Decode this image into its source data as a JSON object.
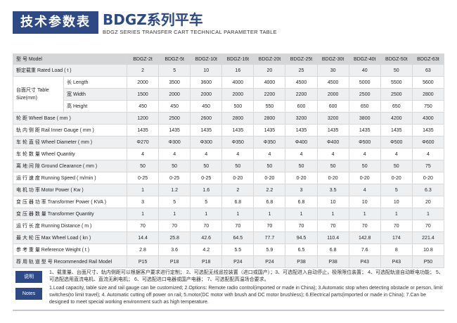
{
  "header": {
    "cn_title": "技术参数表",
    "sys_title": "BDGZ系列平车",
    "en_title": "BDGZ SERIES TRANSFER CART TECHNICAL PARAMETER TABLE"
  },
  "table": {
    "model_label": "型 号 Model",
    "models": [
      "BDGZ-2t",
      "BDGZ-5t",
      "BDGZ-10t",
      "BDGZ-16t",
      "BDGZ-20t",
      "BDGZ-25t",
      "BDGZ-30t",
      "BDGZ-40t",
      "BDGZ-50t",
      "BDGZ-63t"
    ],
    "rated_load": {
      "label": "额定载重 Rated Load ( t )",
      "values": [
        "2",
        "5",
        "10",
        "16",
        "20",
        "25",
        "30",
        "40",
        "50",
        "63"
      ]
    },
    "table_size": {
      "label": "台面尺寸 Table Size(mm)",
      "rows": [
        {
          "label": "长 Length",
          "values": [
            "2000",
            "3500",
            "3600",
            "4000",
            "4000",
            "4500",
            "4500",
            "5000",
            "5500",
            "5600"
          ]
        },
        {
          "label": "宽 Width",
          "values": [
            "1500",
            "2000",
            "2000",
            "2000",
            "2200",
            "2200",
            "2000",
            "2500",
            "2500",
            "2800"
          ]
        },
        {
          "label": "高 Height",
          "values": [
            "450",
            "450",
            "450",
            "500",
            "550",
            "600",
            "600",
            "650",
            "650",
            "750"
          ]
        }
      ]
    },
    "rows": [
      {
        "label": "轮 距 Wheel Base ( mm )",
        "values": [
          "1200",
          "2500",
          "2600",
          "2800",
          "2800",
          "3200",
          "3200",
          "3800",
          "4200",
          "4300"
        ]
      },
      {
        "label": "轨 内 侧 距 Rail Inner Gauge ( mm )",
        "values": [
          "1435",
          "1435",
          "1435",
          "1435",
          "1435",
          "1435",
          "1435",
          "1435",
          "1435",
          "1435"
        ]
      },
      {
        "label": "车 轮 直 径 Wheel Diameter ( mm )",
        "values": [
          "Φ270",
          "Φ300",
          "Φ300",
          "Φ350",
          "Φ350",
          "Φ400",
          "Φ400",
          "Φ500",
          "Φ500",
          "Φ600"
        ]
      },
      {
        "label": "车 轮 数 量 Wheel Quantity",
        "values": [
          "4",
          "4",
          "4",
          "4",
          "4",
          "4",
          "4",
          "4",
          "4",
          "4"
        ]
      },
      {
        "label": "离 地 间 隙 Ground Clearance ( mm )",
        "values": [
          "50",
          "50",
          "50",
          "50",
          "50",
          "50",
          "50",
          "50",
          "50",
          "75"
        ]
      },
      {
        "label": "运 行 速 度 Running Speed ( m/min )",
        "values": [
          "0-25",
          "0-25",
          "0-25",
          "0-20",
          "0-20",
          "0-20",
          "0-20",
          "0-20",
          "0-20",
          "0-20"
        ]
      },
      {
        "label": "电 机 功 率 Motor Power ( Kw )",
        "values": [
          "1",
          "1.2",
          "1.6",
          "2",
          "2.2",
          "3",
          "3.5",
          "4",
          "5",
          "6.3"
        ]
      },
      {
        "label": "变 压 器 功 率 Transformer Power ( KVA )",
        "values": [
          "3",
          "5",
          "5",
          "6.8",
          "6.8",
          "6.8",
          "10",
          "10",
          "10",
          "20"
        ]
      },
      {
        "label": "变 压 器 数 量 Transformer Quantity",
        "values": [
          "1",
          "1",
          "1",
          "1",
          "1",
          "1",
          "1",
          "1",
          "1",
          "1"
        ]
      },
      {
        "label": "运 行 长 度 Running Distance ( m )",
        "values": [
          "70",
          "70",
          "70",
          "70",
          "70",
          "70",
          "70",
          "70",
          "70",
          "70"
        ]
      },
      {
        "label": "最 大 轮 压 Max Wheel Load ( kn )",
        "values": [
          "14.4",
          "25.8",
          "42.6",
          "64.5",
          "77.7",
          "94.5",
          "110.4",
          "142.8",
          "174",
          "221.4"
        ]
      },
      {
        "label": "参 考 重 量 Reference Weight ( t )",
        "values": [
          "2.8",
          "3.6",
          "4.2",
          "5.5",
          "5.9",
          "6.5",
          "6.8",
          "7.6",
          "8",
          "10.8"
        ]
      },
      {
        "label": "荐 用 轨 道 型 号 Recommended Rail Model",
        "values": [
          "P15",
          "P18",
          "P18",
          "P24",
          "P24",
          "P38",
          "P38",
          "P43",
          "P43",
          "P50"
        ]
      }
    ]
  },
  "notes": {
    "cn_tag": "说明",
    "en_tag": "Notes",
    "cn_text": "1、载重量、台面尺寸、轨内侧距可以根据客户要求进行定制；  2、可选配无线遥控装置（进口或国产）；3、可选配进入自动停止，极限限位装置；  4、可选配轨道自动断电功能；  5、可选配选用直流电机、直流无刷电机；  6、可选配进口电器或国产电器；  7、可选配配高温场合要求。",
    "en_text": "1.Load capacity, table size and rail gauge can be customized; 2.Options: Remote radio control(imported or made in China); 3.Automatic stop when detecting obstacle or person, limit switches(to limit travel); 4. Automatic cutting off power on rail; 5.motor(DC motor with brush and DC motor brushless); 6.Electrical parts(imported or made in China); 7.Can be designed to meet special working environment such as high temperature."
  }
}
